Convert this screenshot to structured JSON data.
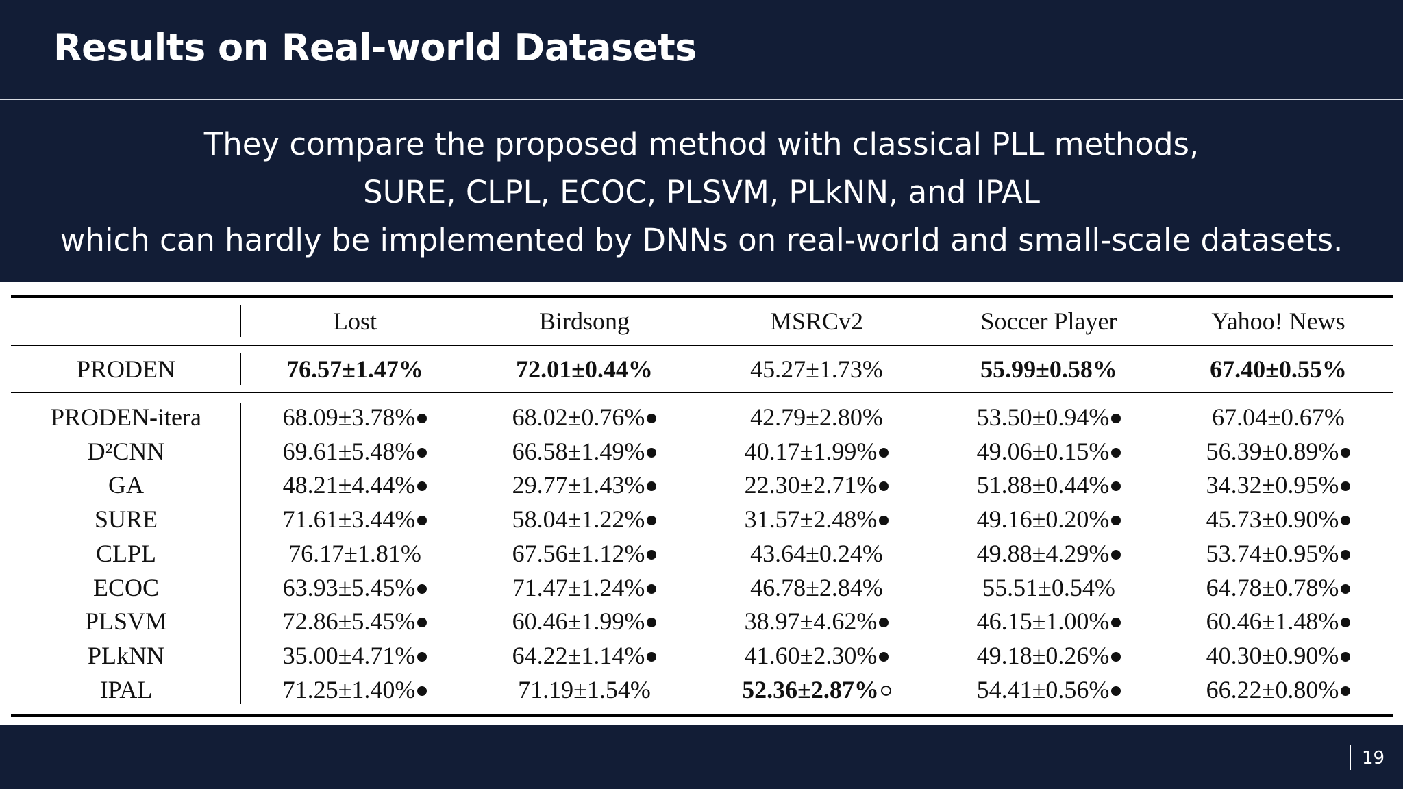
{
  "slide": {
    "title": "Results on Real-world Datasets",
    "subtitle": [
      "They compare the proposed method with classical PLL methods,",
      "SURE, CLPL, ECOC, PLSVM, PLkNN, and IPAL",
      "which can hardly be implemented by DNNs on real-world and small-scale datasets."
    ],
    "page_number": "19"
  },
  "table": {
    "columns": [
      "Lost",
      "Birdsong",
      "MSRCv2",
      "Soccer Player",
      "Yahoo! News"
    ],
    "proposed": {
      "method": "PRODEN",
      "cells": [
        {
          "text": "76.57±1.47%",
          "bold": true,
          "mark": ""
        },
        {
          "text": "72.01±0.44%",
          "bold": true,
          "mark": ""
        },
        {
          "text": "45.27±1.73%",
          "bold": false,
          "mark": ""
        },
        {
          "text": "55.99±0.58%",
          "bold": true,
          "mark": ""
        },
        {
          "text": "67.40±0.55%",
          "bold": true,
          "mark": ""
        }
      ]
    },
    "rows": [
      {
        "method": "PRODEN-itera",
        "cells": [
          {
            "text": "68.09±3.78%",
            "bold": false,
            "mark": "filled"
          },
          {
            "text": "68.02±0.76%",
            "bold": false,
            "mark": "filled"
          },
          {
            "text": "42.79±2.80%",
            "bold": false,
            "mark": ""
          },
          {
            "text": "53.50±0.94%",
            "bold": false,
            "mark": "filled"
          },
          {
            "text": "67.04±0.67%",
            "bold": false,
            "mark": ""
          }
        ]
      },
      {
        "method": "D²CNN",
        "cells": [
          {
            "text": "69.61±5.48%",
            "bold": false,
            "mark": "filled"
          },
          {
            "text": "66.58±1.49%",
            "bold": false,
            "mark": "filled"
          },
          {
            "text": "40.17±1.99%",
            "bold": false,
            "mark": "filled"
          },
          {
            "text": "49.06±0.15%",
            "bold": false,
            "mark": "filled"
          },
          {
            "text": "56.39±0.89%",
            "bold": false,
            "mark": "filled"
          }
        ]
      },
      {
        "method": "GA",
        "cells": [
          {
            "text": "48.21±4.44%",
            "bold": false,
            "mark": "filled"
          },
          {
            "text": "29.77±1.43%",
            "bold": false,
            "mark": "filled"
          },
          {
            "text": "22.30±2.71%",
            "bold": false,
            "mark": "filled"
          },
          {
            "text": "51.88±0.44%",
            "bold": false,
            "mark": "filled"
          },
          {
            "text": "34.32±0.95%",
            "bold": false,
            "mark": "filled"
          }
        ]
      },
      {
        "method": "SURE",
        "cells": [
          {
            "text": "71.61±3.44%",
            "bold": false,
            "mark": "filled"
          },
          {
            "text": "58.04±1.22%",
            "bold": false,
            "mark": "filled"
          },
          {
            "text": "31.57±2.48%",
            "bold": false,
            "mark": "filled"
          },
          {
            "text": "49.16±0.20%",
            "bold": false,
            "mark": "filled"
          },
          {
            "text": "45.73±0.90%",
            "bold": false,
            "mark": "filled"
          }
        ]
      },
      {
        "method": "CLPL",
        "cells": [
          {
            "text": "76.17±1.81%",
            "bold": false,
            "mark": ""
          },
          {
            "text": "67.56±1.12%",
            "bold": false,
            "mark": "filled"
          },
          {
            "text": "43.64±0.24%",
            "bold": false,
            "mark": ""
          },
          {
            "text": "49.88±4.29%",
            "bold": false,
            "mark": "filled"
          },
          {
            "text": "53.74±0.95%",
            "bold": false,
            "mark": "filled"
          }
        ]
      },
      {
        "method": "ECOC",
        "cells": [
          {
            "text": "63.93±5.45%",
            "bold": false,
            "mark": "filled"
          },
          {
            "text": "71.47±1.24%",
            "bold": false,
            "mark": "filled"
          },
          {
            "text": "46.78±2.84%",
            "bold": false,
            "mark": ""
          },
          {
            "text": "55.51±0.54%",
            "bold": false,
            "mark": ""
          },
          {
            "text": "64.78±0.78%",
            "bold": false,
            "mark": "filled"
          }
        ]
      },
      {
        "method": "PLSVM",
        "cells": [
          {
            "text": "72.86±5.45%",
            "bold": false,
            "mark": "filled"
          },
          {
            "text": "60.46±1.99%",
            "bold": false,
            "mark": "filled"
          },
          {
            "text": "38.97±4.62%",
            "bold": false,
            "mark": "filled"
          },
          {
            "text": "46.15±1.00%",
            "bold": false,
            "mark": "filled"
          },
          {
            "text": "60.46±1.48%",
            "bold": false,
            "mark": "filled"
          }
        ]
      },
      {
        "method": "PLkNN",
        "cells": [
          {
            "text": "35.00±4.71%",
            "bold": false,
            "mark": "filled"
          },
          {
            "text": "64.22±1.14%",
            "bold": false,
            "mark": "filled"
          },
          {
            "text": "41.60±2.30%",
            "bold": false,
            "mark": "filled"
          },
          {
            "text": "49.18±0.26%",
            "bold": false,
            "mark": "filled"
          },
          {
            "text": "40.30±0.90%",
            "bold": false,
            "mark": "filled"
          }
        ]
      },
      {
        "method": "IPAL",
        "cells": [
          {
            "text": "71.25±1.40%",
            "bold": false,
            "mark": "filled"
          },
          {
            "text": "71.19±1.54%",
            "bold": false,
            "mark": ""
          },
          {
            "text": "52.36±2.87%",
            "bold": true,
            "mark": "open"
          },
          {
            "text": "54.41±0.56%",
            "bold": false,
            "mark": "filled"
          },
          {
            "text": "66.22±0.80%",
            "bold": false,
            "mark": "filled"
          }
        ]
      }
    ]
  }
}
